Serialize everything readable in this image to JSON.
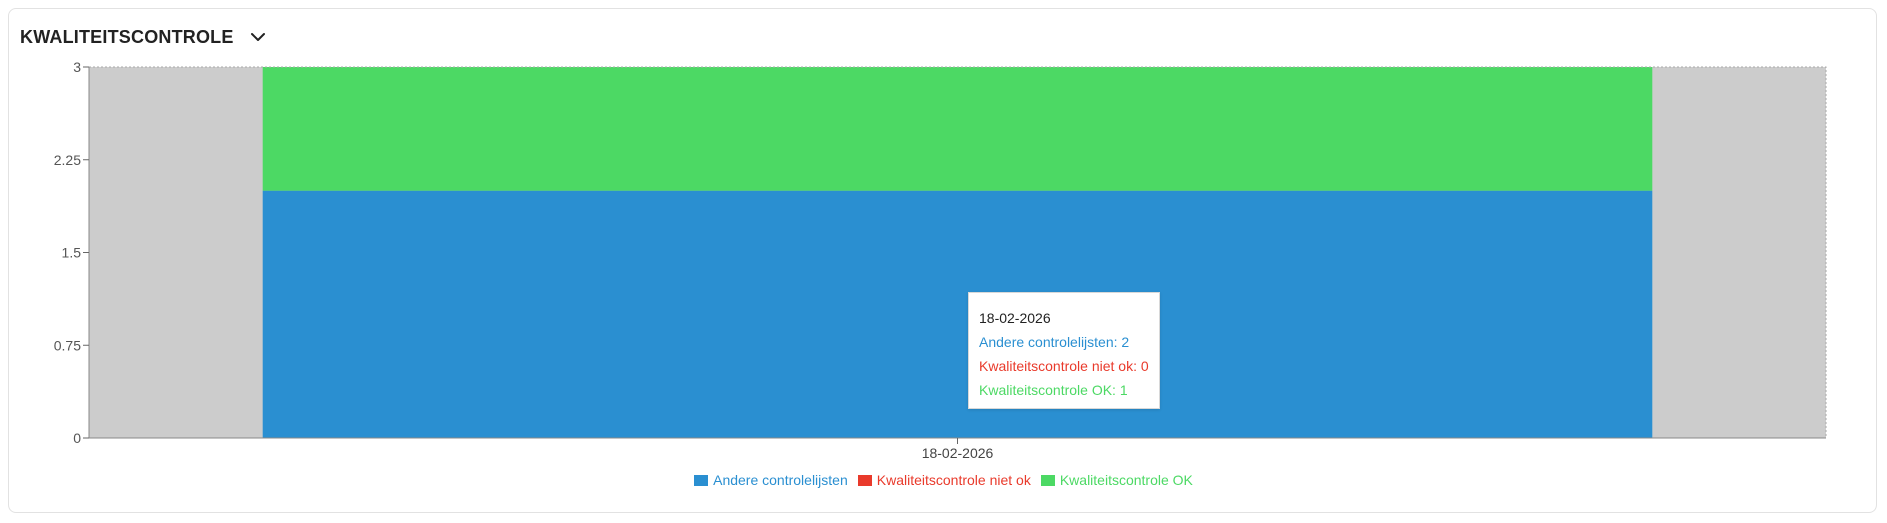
{
  "header": {
    "title": "KWALITEITSCONTROLE",
    "toggle_icon": "chevron-down-icon"
  },
  "colors": {
    "andere": "#2a8fd1",
    "niet_ok": "#e93a2b",
    "ok": "#4cd964",
    "plot_bg": "#cccccc"
  },
  "chart_data": {
    "type": "bar",
    "stacked": true,
    "categories": [
      "18-02-2026"
    ],
    "series": [
      {
        "name": "Andere controlelijsten",
        "values": [
          2
        ],
        "color": "#2a8fd1"
      },
      {
        "name": "Kwaliteitscontrole niet ok",
        "values": [
          0
        ],
        "color": "#e93a2b"
      },
      {
        "name": "Kwaliteitscontrole OK",
        "values": [
          1
        ],
        "color": "#4cd964"
      }
    ],
    "ylim": [
      0,
      3
    ],
    "yticks": [
      "0",
      "0.75",
      "1.5",
      "2.25",
      "3"
    ],
    "ytick_values": [
      0,
      0.75,
      1.5,
      2.25,
      3
    ],
    "xlabel": "",
    "ylabel": "",
    "legend_position": "bottom-center",
    "grid": false
  },
  "tooltip": {
    "date": "18-02-2026",
    "lines": [
      {
        "text": "Andere controlelijsten: 2",
        "color": "#2a8fd1"
      },
      {
        "text": "Kwaliteitscontrole niet ok: 0",
        "color": "#e93a2b"
      },
      {
        "text": "Kwaliteitscontrole OK: 1",
        "color": "#4cd964"
      }
    ]
  },
  "legend": [
    {
      "label": "Andere controlelijsten",
      "color": "#2a8fd1"
    },
    {
      "label": "Kwaliteitscontrole niet ok",
      "color": "#e93a2b"
    },
    {
      "label": "Kwaliteitscontrole OK",
      "color": "#4cd964"
    }
  ]
}
